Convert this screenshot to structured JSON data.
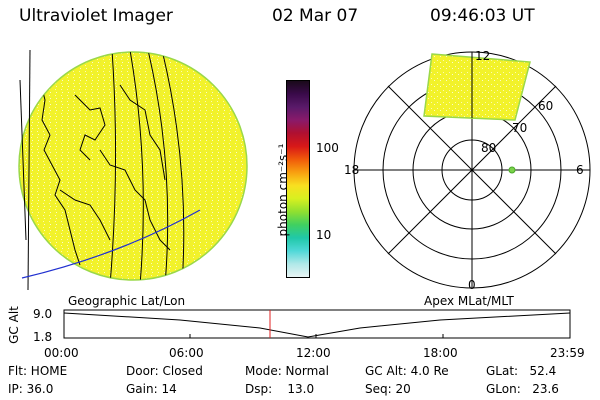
{
  "header": {
    "instrument": "Ultraviolet Imager",
    "date": "02 Mar 07",
    "time": "09:46:03 UT"
  },
  "colorbar": {
    "unit_label": "photon cm⁻²s⁻¹",
    "tick_labels": [
      "100",
      "10"
    ],
    "colors": [
      "#1a0a1a",
      "#3a0a4a",
      "#5a1a6a",
      "#8a1a6a",
      "#b01030",
      "#d81818",
      "#f05a0a",
      "#f8a010",
      "#f8e020",
      "#d8f020",
      "#90e030",
      "#40d060",
      "#20c8a8",
      "#50d8d8",
      "#b0e8e8",
      "#e8f4f4"
    ]
  },
  "globe_panel": {
    "caption": "Geographic Lat/Lon",
    "fill_color": "#f2f22a"
  },
  "polar_panel": {
    "caption": "Apex MLat/MLT",
    "mlt_labels": [
      "12",
      "18",
      "6",
      "0"
    ],
    "mlat_labels": [
      "60",
      "70",
      "80"
    ],
    "fill_color": "#f2f22a"
  },
  "altitude_plot": {
    "axis_label": "GC Alt",
    "y_ticks": [
      "9.0",
      "1.8"
    ],
    "x_ticks": [
      "00:00",
      "06:00",
      "12:00",
      "18:00",
      "23:59"
    ],
    "marker_time": "09:46"
  },
  "info": {
    "flt": "Flt: HOME",
    "ip": "IP: 36.0",
    "door": "Door: Closed",
    "gain": "Gain: 14",
    "mode": "Mode: Normal",
    "dsp": "Dsp:    13.0",
    "gc_alt": "GC Alt: 4.0 Re",
    "seq": "Seq: 20",
    "glat": "GLat:   52.4",
    "glon": "GLon:   23.6"
  }
}
